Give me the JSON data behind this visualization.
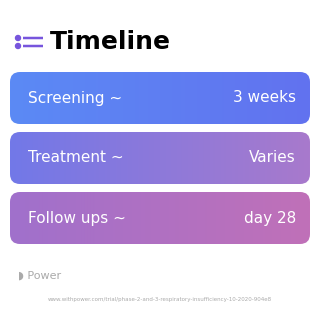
{
  "title": "Timeline",
  "bg_color": "#ffffff",
  "rows": [
    {
      "label": "Screening ~",
      "value": "3 weeks",
      "color_left": "#5b8af5",
      "color_right": "#6272ef"
    },
    {
      "label": "Treatment ~",
      "value": "Varies",
      "color_left": "#7278e8",
      "color_right": "#a87acc"
    },
    {
      "label": "Follow ups ~",
      "value": "day 28",
      "color_left": "#a070cc",
      "color_right": "#c070b8"
    }
  ],
  "icon_color": "#7755dd",
  "footer_text": "www.withpower.com/trial/phase-2-and-3-respiratory-insufficiency-10-2020-904e8",
  "footer_logo_text": "Power",
  "footer_color": "#aaaaaa"
}
